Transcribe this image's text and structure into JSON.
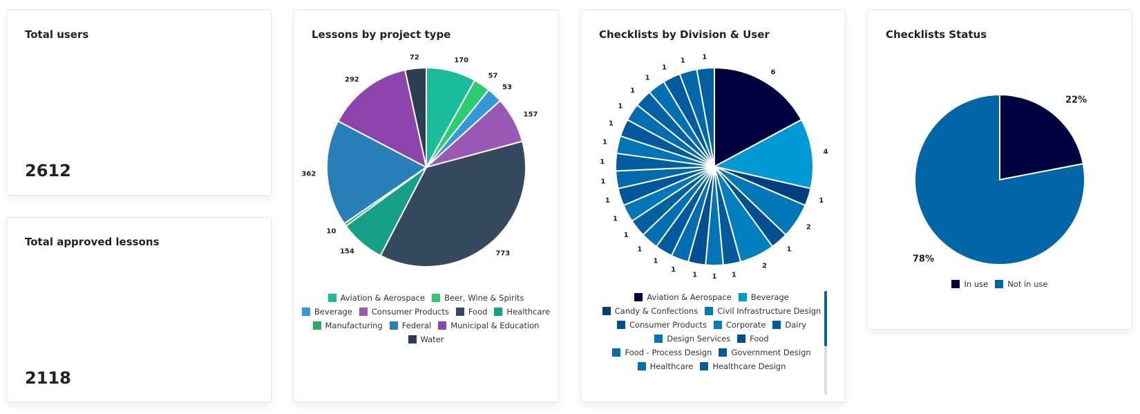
{
  "cards": [
    {
      "title": "Total users",
      "value": 2612
    },
    {
      "title": "Total approved lessons",
      "value": 2118
    }
  ],
  "chart_data": [
    {
      "type": "pie",
      "title": "Lessons by project type",
      "categories": [
        "Aviation & Aerospace",
        "Beer, Wine & Spirits",
        "Beverage",
        "Consumer Products",
        "Food",
        "Healthcare",
        "Manufacturing",
        "Federal",
        "Municipal & Education",
        "Water"
      ],
      "values": [
        170,
        57,
        53,
        157,
        773,
        154,
        10,
        362,
        292,
        72
      ],
      "colors": [
        "#1abc9c",
        "#2ecc71",
        "#3498db",
        "#9b59b6",
        "#34495e",
        "#16a085",
        "#27ae60",
        "#2980b9",
        "#8e44ad",
        "#2c3e50"
      ]
    },
    {
      "type": "pie",
      "title": "Checklists by Division & User",
      "categories": [
        "Aviation & Aerospace",
        "Beverage",
        "Candy & Confections",
        "Civil Infrastructure Design",
        "Consumer Products",
        "Corporate",
        "Dairy",
        "Design Services",
        "Food",
        "Food - Process Design",
        "Government Design",
        "Healthcare",
        "Healthcare Design",
        null,
        null,
        null,
        null,
        null,
        null,
        null,
        null,
        null,
        null,
        null,
        null
      ],
      "values": [
        6,
        4,
        1,
        2,
        1,
        2,
        1,
        1,
        1,
        1,
        1,
        1,
        1,
        1,
        1,
        1,
        1,
        1,
        1,
        1,
        1,
        1,
        1,
        1,
        1
      ],
      "colors": [
        "#000040",
        "#0099d6",
        "#003f7f",
        "#0078b8",
        "#00508f",
        "#0080c0",
        "#005a9c",
        "#0074b4",
        "#004f91",
        "#006eb0",
        "#005b9e",
        "#0070b0",
        "#0060a0",
        "#0078b8",
        "#00569a",
        "#006aac",
        "#005ea0",
        "#0074b4",
        "#00599c",
        "#006eb0",
        "#0062a4",
        "#0070b2",
        "#005c9e",
        "#0068aa",
        "#00609f"
      ]
    },
    {
      "type": "pie",
      "title": "Checklists Status",
      "categories": [
        "In use",
        "Not in use"
      ],
      "values": [
        22,
        78
      ],
      "value_labels": [
        "22%",
        "78%"
      ],
      "colors": [
        "#000040",
        "#0066a6"
      ]
    }
  ]
}
